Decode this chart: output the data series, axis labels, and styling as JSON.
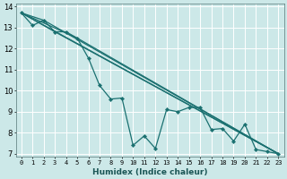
{
  "xlabel": "Humidex (Indice chaleur)",
  "bg_color": "#cce8e8",
  "grid_color": "#ffffff",
  "line_color": "#1a7070",
  "xlim": [
    -0.5,
    23.5
  ],
  "ylim": [
    6.85,
    14.15
  ],
  "yticks": [
    7,
    8,
    9,
    10,
    11,
    12,
    13,
    14
  ],
  "xticks": [
    0,
    1,
    2,
    3,
    4,
    5,
    6,
    7,
    8,
    9,
    10,
    11,
    12,
    13,
    14,
    15,
    16,
    17,
    18,
    19,
    20,
    21,
    22,
    23
  ],
  "series_main": {
    "x": [
      0,
      1,
      2,
      3,
      4,
      5,
      6,
      7,
      8,
      9,
      10,
      11,
      12,
      13,
      14,
      15,
      16,
      17,
      18,
      19,
      20,
      21,
      22,
      23
    ],
    "y": [
      13.7,
      13.1,
      13.35,
      12.8,
      12.8,
      12.5,
      11.55,
      10.25,
      9.6,
      9.65,
      7.4,
      7.85,
      7.25,
      9.1,
      9.0,
      9.2,
      9.2,
      8.15,
      8.2,
      7.6,
      8.4,
      7.2,
      7.1,
      7.0
    ]
  },
  "series_lines": [
    {
      "x": [
        0,
        23
      ],
      "y": [
        13.7,
        7.0
      ]
    },
    {
      "x": [
        0,
        2,
        23
      ],
      "y": [
        13.7,
        13.35,
        7.0
      ]
    },
    {
      "x": [
        0,
        3,
        23
      ],
      "y": [
        13.7,
        12.8,
        7.0
      ]
    },
    {
      "x": [
        0,
        5,
        23
      ],
      "y": [
        13.7,
        12.5,
        7.0
      ]
    }
  ]
}
